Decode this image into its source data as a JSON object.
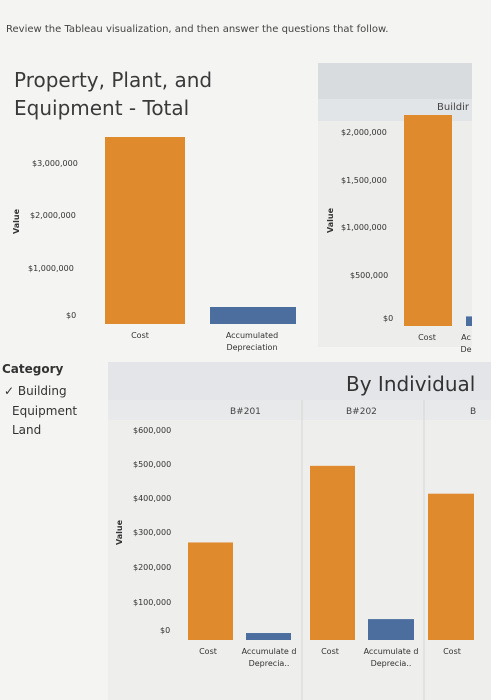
{
  "instruction": "Review the Tableau visualization, and then answer the questions that follow.",
  "title_line1": "Property, Plant, and",
  "title_line2": "Equipment - Total",
  "legend": {
    "title": "Category",
    "items": [
      {
        "label": "Building",
        "checked": true
      },
      {
        "label": "Equipment",
        "checked": false
      },
      {
        "label": "Land",
        "checked": false
      }
    ]
  },
  "by_individual": "By Individual",
  "colors": {
    "cost": "#e08a2e",
    "depreciation": "#4b6e9f"
  },
  "chart_data": [
    {
      "type": "bar",
      "title": "Property, Plant, and Equipment - Total",
      "ylabel": "Value",
      "categories": [
        "Cost",
        "Accumulated Depreciation"
      ],
      "values": [
        3300000,
        300000
      ],
      "ylim": [
        0,
        3300000
      ],
      "yticks": [
        "$3,000,000",
        "$2,000,000",
        "$1,000,000",
        "$0"
      ]
    },
    {
      "type": "bar",
      "title": "Buildir",
      "ylabel": "Value",
      "categories": [
        "Cost",
        "Ac De"
      ],
      "values": [
        2200000,
        100000
      ],
      "ylim": [
        0,
        2200000
      ],
      "yticks": [
        "$2,000,000",
        "$1,500,000",
        "$1,000,000",
        "$500,000",
        "$0"
      ]
    },
    {
      "type": "bar",
      "ylabel": "Value",
      "groups": [
        "B#201",
        "B#202",
        "B"
      ],
      "categories": [
        "Cost",
        "Accumulate d Deprecia..",
        "Cost",
        "Accumulate d Deprecia..",
        "Cost"
      ],
      "values": [
        280000,
        20000,
        500000,
        60000,
        420000
      ],
      "ylim": [
        0,
        600000
      ],
      "yticks": [
        "$600,000",
        "$500,000",
        "$400,000",
        "$300,000",
        "$200,000",
        "$100,000",
        "$0"
      ]
    }
  ]
}
